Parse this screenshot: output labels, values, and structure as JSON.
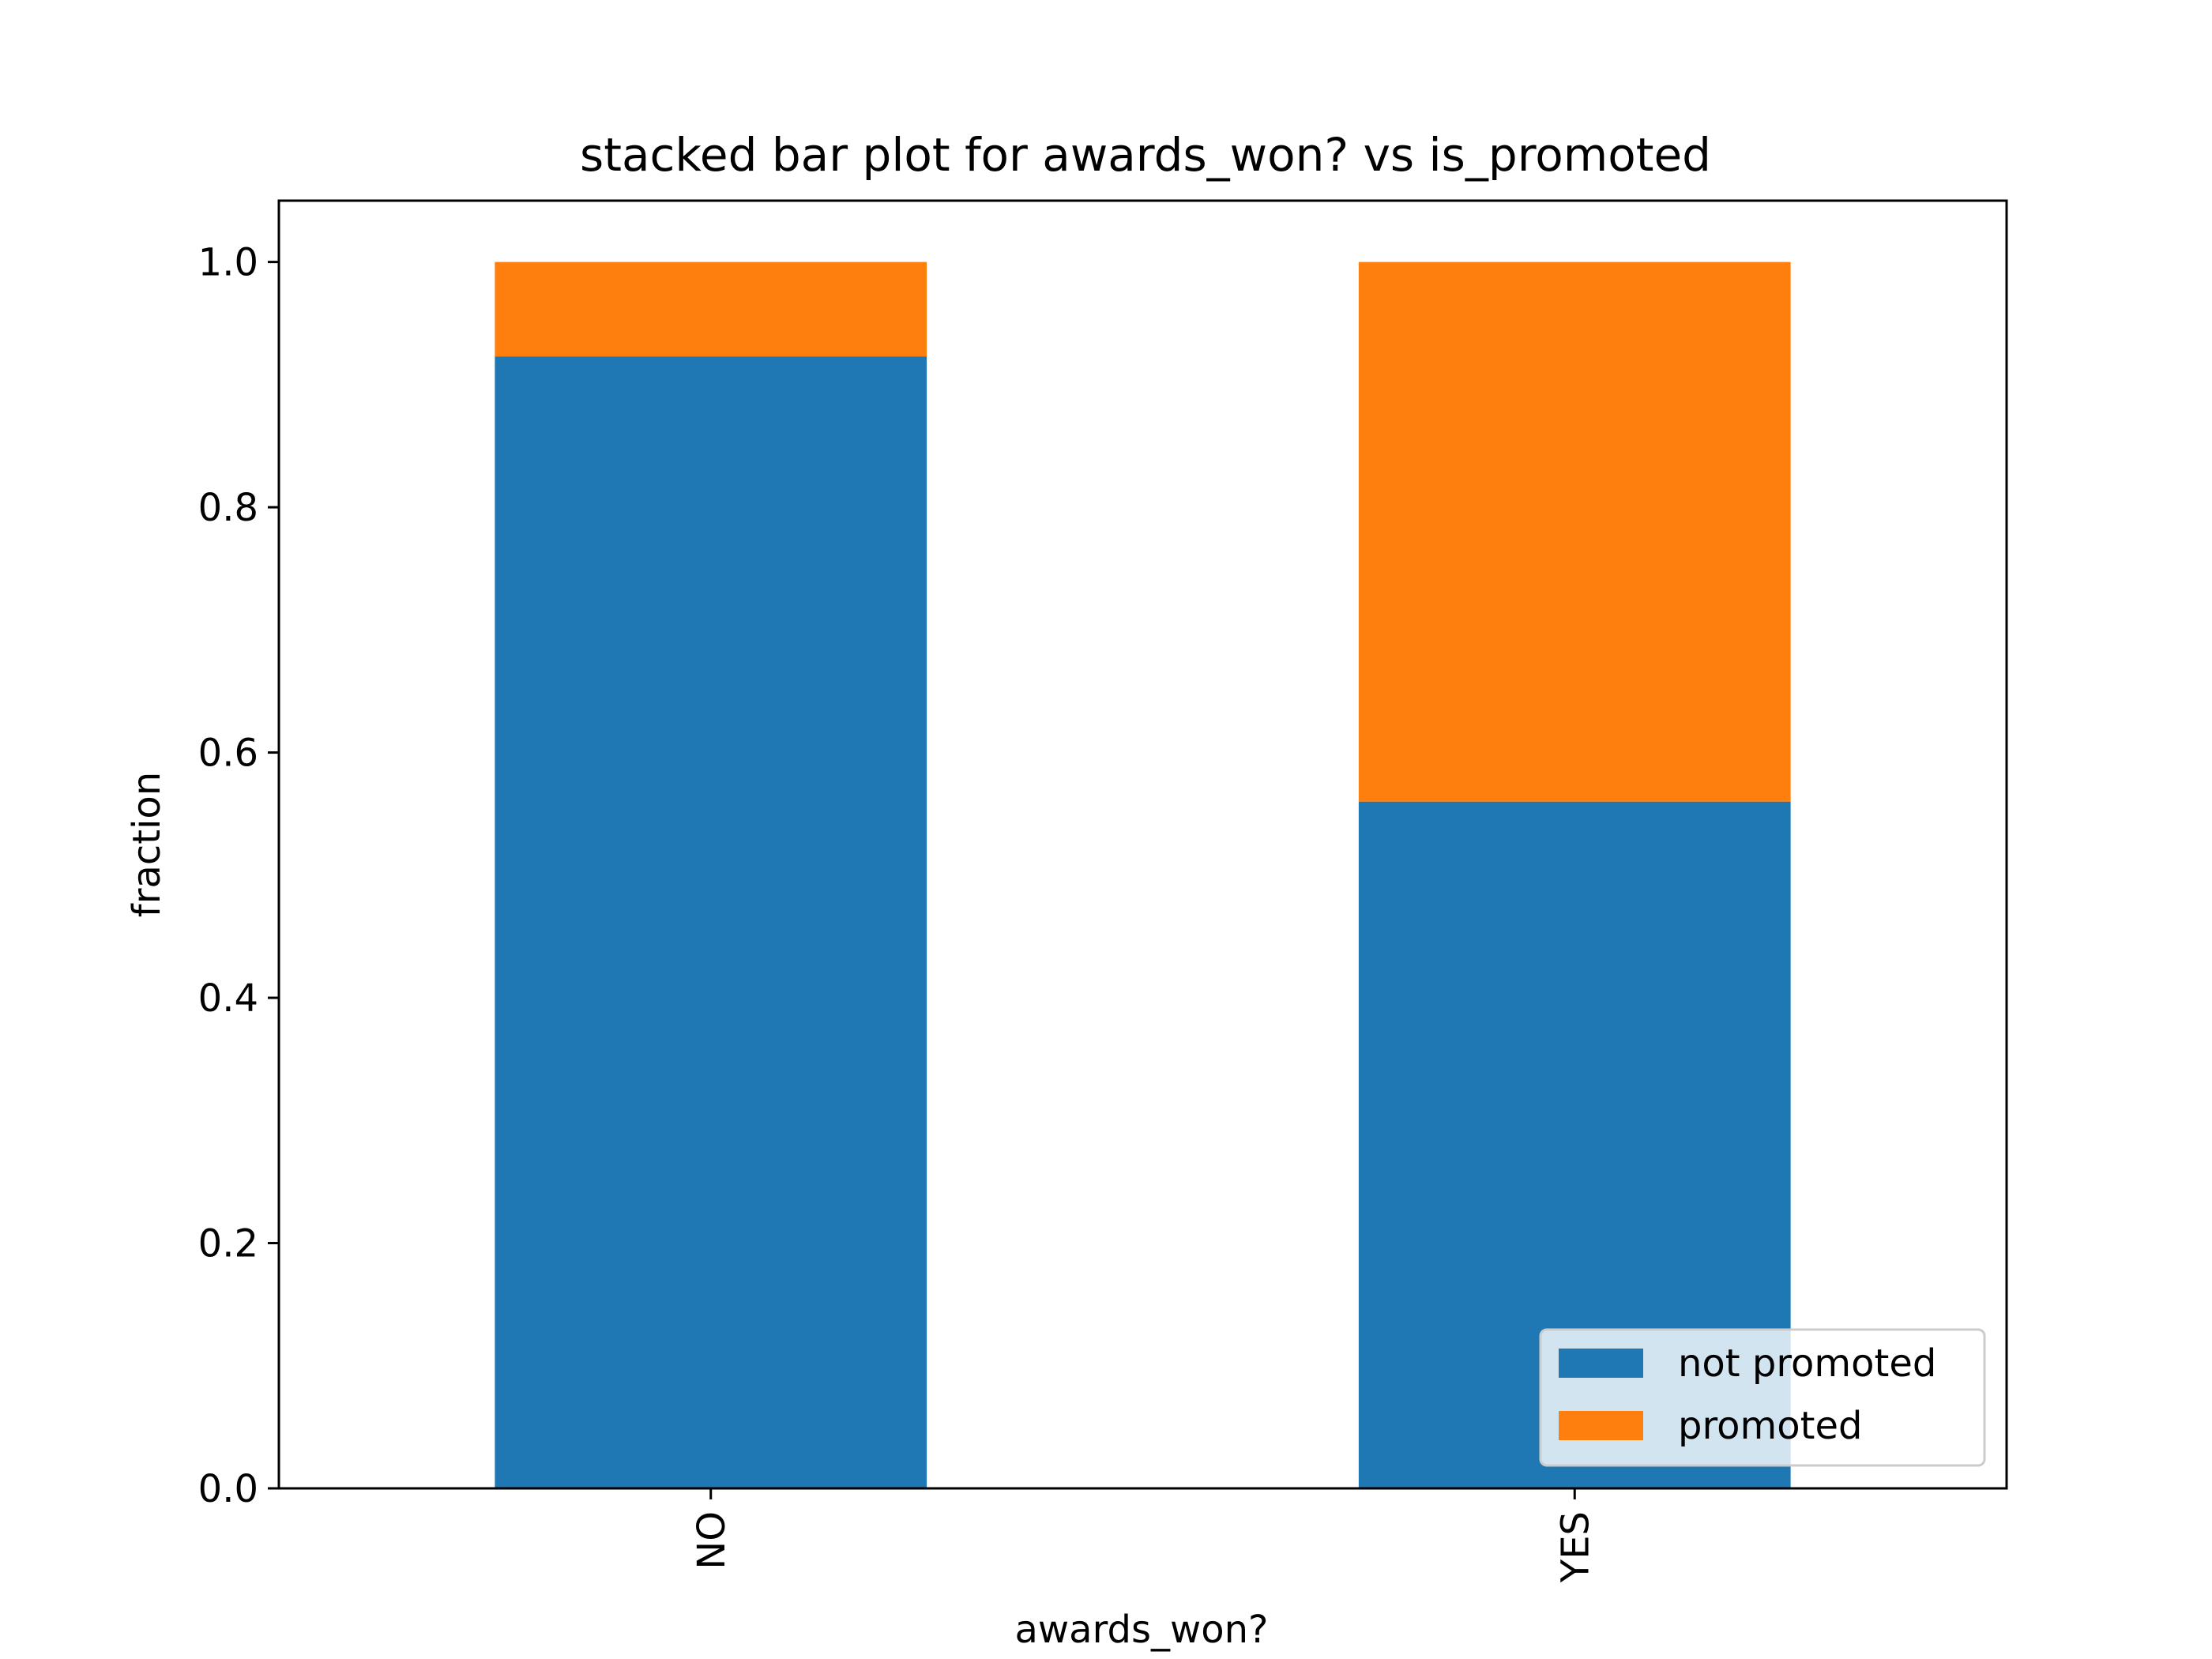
{
  "chart_data": {
    "type": "bar",
    "stacked": true,
    "title": "stacked bar plot for awards_won? vs is_promoted",
    "xlabel": "awards_won?",
    "ylabel": "fraction",
    "categories": [
      "NO",
      "YES"
    ],
    "series": [
      {
        "name": "not promoted",
        "values": [
          0.923,
          0.56
        ],
        "color": "#1f77b4"
      },
      {
        "name": "promoted",
        "values": [
          0.077,
          0.44
        ],
        "color": "#ff7f0e"
      }
    ],
    "ylim": [
      0,
      1.05
    ],
    "yticks": [
      "0.0",
      "0.2",
      "0.4",
      "0.6",
      "0.8",
      "1.0"
    ],
    "grid": false,
    "legend_position": "lower-right"
  }
}
